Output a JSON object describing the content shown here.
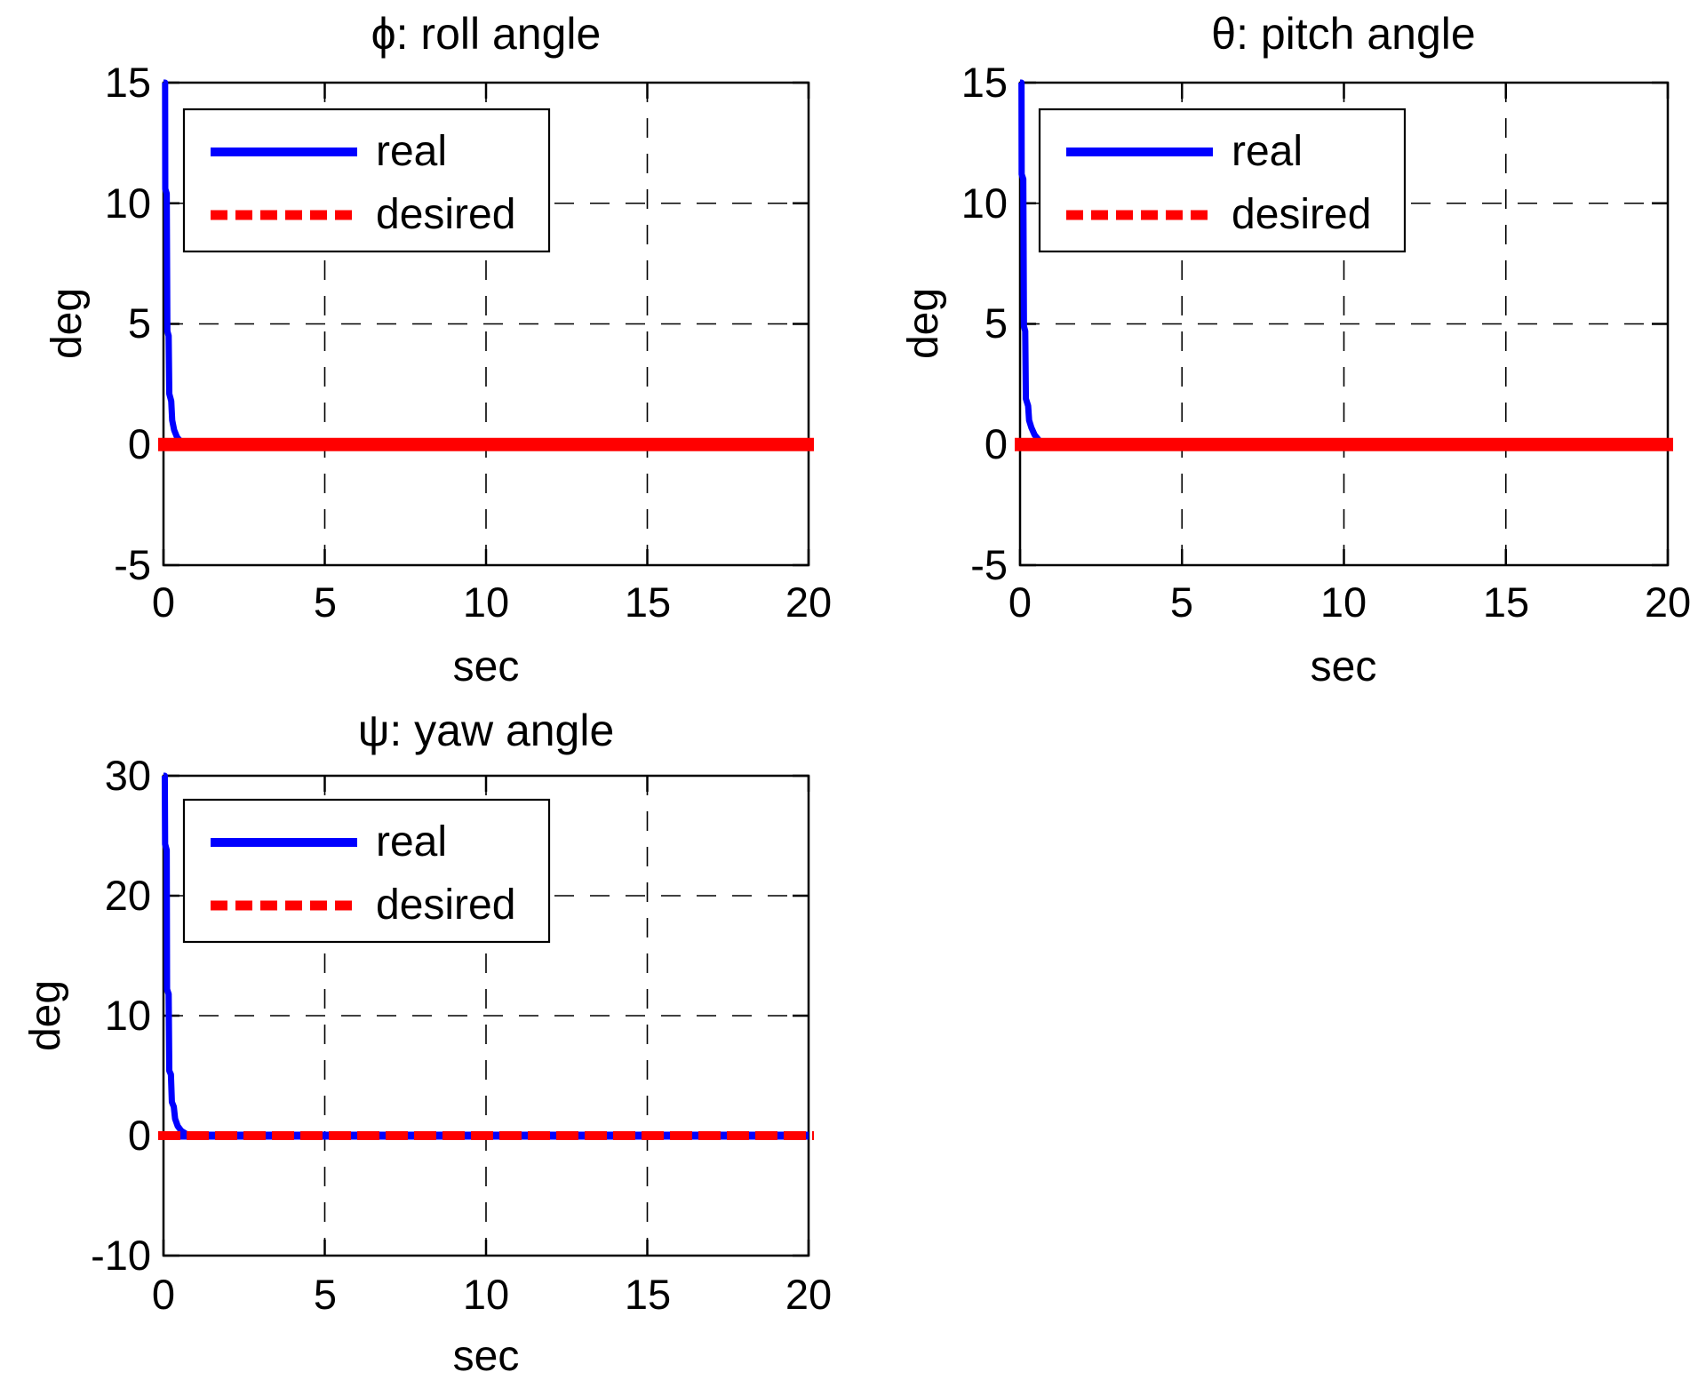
{
  "figure": {
    "background": "#ffffff",
    "text_color": "#000000"
  },
  "colors": {
    "real": "#0000ff",
    "desired": "#ff0000",
    "axis": "#000000",
    "grid": "#000000"
  },
  "chart_data": [
    {
      "id": "roll",
      "type": "line",
      "title": "ϕ: roll angle",
      "xlabel": "sec",
      "ylabel": "deg",
      "xlim": [
        0,
        20
      ],
      "ylim": [
        -5,
        15
      ],
      "xticks": [
        0,
        5,
        10,
        15,
        20
      ],
      "yticks": [
        15,
        10,
        5,
        0,
        -5
      ],
      "xtick_labels": [
        "0",
        "5",
        "10",
        "15",
        "20"
      ],
      "ytick_labels": [
        "15",
        "10",
        "5",
        "0",
        "-5"
      ],
      "grid": true,
      "legend": {
        "position": "top-left",
        "entries": [
          {
            "label": "real",
            "color": "#0000ff",
            "style": "solid"
          },
          {
            "label": "desired",
            "color": "#ff0000",
            "style": "dashed"
          }
        ]
      },
      "series": [
        {
          "name": "real",
          "color": "#0000ff",
          "style": "solid",
          "points": [
            [
              0,
              15
            ],
            [
              0.05,
              15
            ],
            [
              0.055,
              10.6
            ],
            [
              0.1,
              10.4
            ],
            [
              0.12,
              4.7
            ],
            [
              0.16,
              4.5
            ],
            [
              0.18,
              2.1
            ],
            [
              0.24,
              1.8
            ],
            [
              0.27,
              1.0
            ],
            [
              0.33,
              0.6
            ],
            [
              0.42,
              0.3
            ],
            [
              0.55,
              0.1
            ],
            [
              0.7,
              0
            ],
            [
              20,
              0
            ]
          ]
        },
        {
          "name": "desired",
          "color": "#ff0000",
          "style": "dashed",
          "points": [
            [
              0,
              0
            ],
            [
              20,
              0
            ]
          ]
        }
      ]
    },
    {
      "id": "pitch",
      "type": "line",
      "title": "θ: pitch angle",
      "xlabel": "sec",
      "ylabel": "deg",
      "xlim": [
        0,
        20
      ],
      "ylim": [
        -5,
        15
      ],
      "xticks": [
        0,
        5,
        10,
        15,
        20
      ],
      "yticks": [
        15,
        10,
        5,
        0,
        -5
      ],
      "xtick_labels": [
        "0",
        "5",
        "10",
        "15",
        "20"
      ],
      "ytick_labels": [
        "15",
        "10",
        "5",
        "0",
        "-5"
      ],
      "grid": true,
      "legend": {
        "position": "top-left",
        "entries": [
          {
            "label": "real",
            "color": "#0000ff",
            "style": "solid"
          },
          {
            "label": "desired",
            "color": "#ff0000",
            "style": "dashed"
          }
        ]
      },
      "series": [
        {
          "name": "real",
          "color": "#0000ff",
          "style": "solid",
          "points": [
            [
              0,
              15
            ],
            [
              0.045,
              15
            ],
            [
              0.05,
              11.2
            ],
            [
              0.1,
              11.0
            ],
            [
              0.12,
              4.9
            ],
            [
              0.16,
              4.7
            ],
            [
              0.18,
              1.9
            ],
            [
              0.25,
              1.6
            ],
            [
              0.28,
              1.0
            ],
            [
              0.35,
              0.7
            ],
            [
              0.45,
              0.4
            ],
            [
              0.6,
              0.15
            ],
            [
              0.8,
              0
            ],
            [
              20,
              0
            ]
          ]
        },
        {
          "name": "desired",
          "color": "#ff0000",
          "style": "dashed",
          "points": [
            [
              0,
              0
            ],
            [
              20,
              0
            ]
          ]
        }
      ]
    },
    {
      "id": "yaw",
      "type": "line",
      "title": "ψ: yaw angle",
      "xlabel": "sec",
      "ylabel": "deg",
      "xlim": [
        0,
        20
      ],
      "ylim": [
        -10,
        30
      ],
      "xticks": [
        0,
        5,
        10,
        15,
        20
      ],
      "yticks": [
        30,
        20,
        10,
        0,
        -10
      ],
      "xtick_labels": [
        "0",
        "5",
        "10",
        "15",
        "20"
      ],
      "ytick_labels": [
        "30",
        "20",
        "10",
        "0",
        "-10"
      ],
      "grid": true,
      "legend": {
        "position": "top-left",
        "entries": [
          {
            "label": "real",
            "color": "#0000ff",
            "style": "solid"
          },
          {
            "label": "desired",
            "color": "#ff0000",
            "style": "dashed"
          }
        ]
      },
      "series": [
        {
          "name": "real",
          "color": "#0000ff",
          "style": "solid",
          "points": [
            [
              0,
              30
            ],
            [
              0.04,
              30
            ],
            [
              0.05,
              24.3
            ],
            [
              0.1,
              23.8
            ],
            [
              0.11,
              12.2
            ],
            [
              0.16,
              11.8
            ],
            [
              0.18,
              5.4
            ],
            [
              0.23,
              5.1
            ],
            [
              0.26,
              2.8
            ],
            [
              0.32,
              2.4
            ],
            [
              0.36,
              1.4
            ],
            [
              0.44,
              0.8
            ],
            [
              0.55,
              0.4
            ],
            [
              0.7,
              0.15
            ],
            [
              0.9,
              0
            ],
            [
              20,
              0
            ]
          ]
        },
        {
          "name": "desired",
          "color": "#ff0000",
          "style": "dashed",
          "points": [
            [
              0,
              0
            ],
            [
              20,
              0
            ]
          ]
        }
      ]
    }
  ]
}
